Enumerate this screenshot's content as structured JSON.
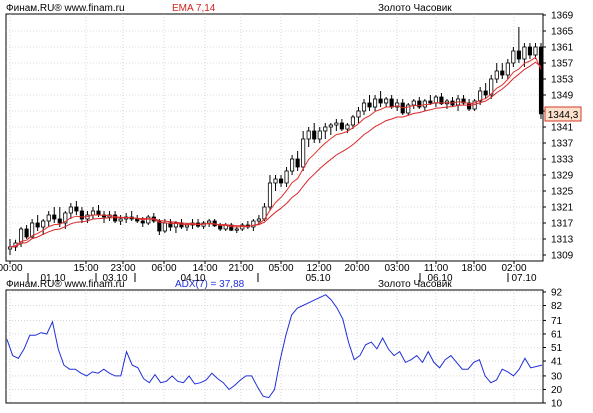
{
  "colors": {
    "background": "#ffffff",
    "grid": "#bdbdbd",
    "frame": "#000000",
    "candle_up": "#ffffff",
    "candle_down": "#000000",
    "ema_fast": "#e0302a",
    "ema_slow": "#d8262a",
    "adx_line": "#2030d8",
    "price_label_bg": "#fbe0cc",
    "price_label_border": "#d23a2a",
    "header_red": "#d0241e"
  },
  "price_panel": {
    "header_left": "Финам.RU® www.finam.ru",
    "header_indicator": "EMA 7,14",
    "header_title": "Золото Часовик",
    "y_ticks": [
      "1369",
      "1365",
      "1361",
      "1357",
      "1353",
      "1349",
      "1345",
      "1341",
      "1337",
      "1333",
      "1329",
      "1325",
      "1321",
      "1317",
      "1313",
      "1309"
    ],
    "last_price_label": "1344,3",
    "time_ticks": [
      "00:00",
      "15:00",
      "23:00",
      "06:00",
      "14:00",
      "21:00",
      "05:00",
      "12:00",
      "20:00",
      "03:00",
      "11:00",
      "18:00",
      "02:00"
    ],
    "date_ticks": [
      "01.10",
      "03.10",
      "04.10",
      "05.10",
      "06.10",
      "07.10"
    ]
  },
  "adx_panel": {
    "header_left": "Финам.RU® www.finam.ru",
    "header_indicator": "ADX(7) = 37,88",
    "header_title": "Золото Часовик",
    "y_ticks": [
      "92",
      "82",
      "71",
      "61",
      "51",
      "41",
      "30",
      "20",
      "10"
    ]
  },
  "chart_data": [
    {
      "type": "candlestick",
      "title": "Золото Часовик",
      "ylim": [
        1309,
        1369
      ],
      "series_name": "EMA 7,14",
      "candles": [
        [
          1310.5,
          1313,
          1309,
          1311
        ],
        [
          1311,
          1312.8,
          1310,
          1312
        ],
        [
          1312,
          1316,
          1311,
          1315.5
        ],
        [
          1315.5,
          1316.5,
          1313,
          1313.5
        ],
        [
          1313.5,
          1318,
          1313,
          1317
        ],
        [
          1317,
          1319,
          1315,
          1316
        ],
        [
          1316,
          1318,
          1314,
          1317.5
        ],
        [
          1317.5,
          1320,
          1316,
          1319
        ],
        [
          1319,
          1321,
          1317,
          1318
        ],
        [
          1318,
          1321,
          1316,
          1317
        ],
        [
          1317,
          1320,
          1315.5,
          1319.5
        ],
        [
          1319.5,
          1322,
          1318,
          1321
        ],
        [
          1321,
          1322.5,
          1319,
          1320
        ],
        [
          1320,
          1321,
          1317,
          1318
        ],
        [
          1318,
          1320,
          1317,
          1319
        ],
        [
          1319,
          1321,
          1318,
          1320
        ],
        [
          1320,
          1321.5,
          1318.5,
          1319
        ],
        [
          1319,
          1320,
          1317,
          1318.5
        ],
        [
          1318.5,
          1320,
          1317.5,
          1319
        ],
        [
          1319,
          1320,
          1317,
          1317.5
        ],
        [
          1317.5,
          1319,
          1316.5,
          1318
        ],
        [
          1318,
          1319.5,
          1317,
          1318.5
        ],
        [
          1318.5,
          1320,
          1317.5,
          1318
        ],
        [
          1318,
          1319,
          1317,
          1317.5
        ],
        [
          1317.5,
          1318.5,
          1316,
          1317
        ],
        [
          1317,
          1319,
          1316.5,
          1318.5
        ],
        [
          1318.5,
          1319.5,
          1317,
          1317.5
        ],
        [
          1317.5,
          1318,
          1314,
          1315
        ],
        [
          1315,
          1318,
          1314.5,
          1317
        ],
        [
          1317,
          1318,
          1315,
          1316
        ],
        [
          1316,
          1317.5,
          1314.5,
          1317
        ],
        [
          1317,
          1318,
          1315.5,
          1316
        ],
        [
          1316,
          1317,
          1315,
          1316.5
        ],
        [
          1316.5,
          1318,
          1315.5,
          1317
        ],
        [
          1317,
          1318,
          1315.8,
          1316.2
        ],
        [
          1316.2,
          1317.5,
          1315.5,
          1317
        ],
        [
          1317,
          1318,
          1316,
          1317.5
        ],
        [
          1317.5,
          1318,
          1316,
          1316.3
        ],
        [
          1316.3,
          1317,
          1315,
          1315.5
        ],
        [
          1315.5,
          1317,
          1315,
          1316.5
        ],
        [
          1316.5,
          1317,
          1315,
          1315.2
        ],
        [
          1315.2,
          1316.2,
          1314.5,
          1315.5
        ],
        [
          1315.5,
          1317,
          1315,
          1316.5
        ],
        [
          1316.5,
          1317.5,
          1315.5,
          1316
        ],
        [
          1316,
          1318,
          1315,
          1317.5
        ],
        [
          1317.5,
          1319,
          1316.5,
          1318
        ],
        [
          1318,
          1322,
          1317.5,
          1321
        ],
        [
          1321,
          1329,
          1320,
          1327
        ],
        [
          1327,
          1329,
          1325,
          1328
        ],
        [
          1328,
          1329,
          1326,
          1327
        ],
        [
          1327,
          1331,
          1326,
          1330
        ],
        [
          1330,
          1334,
          1329,
          1333
        ],
        [
          1333,
          1335,
          1330,
          1331
        ],
        [
          1331,
          1340,
          1330,
          1338
        ],
        [
          1338,
          1341,
          1336,
          1340
        ],
        [
          1340,
          1342,
          1337,
          1338
        ],
        [
          1338,
          1341,
          1337,
          1340
        ],
        [
          1340,
          1342,
          1338,
          1341
        ],
        [
          1341,
          1342,
          1339,
          1341.5
        ],
        [
          1341.5,
          1343,
          1340,
          1342
        ],
        [
          1342,
          1343,
          1340,
          1340.5
        ],
        [
          1340.5,
          1342,
          1339.5,
          1341.5
        ],
        [
          1341.5,
          1344,
          1340.5,
          1343.5
        ],
        [
          1343.5,
          1346,
          1342,
          1345
        ],
        [
          1345,
          1348,
          1344,
          1347
        ],
        [
          1347,
          1349,
          1345,
          1346
        ],
        [
          1346,
          1349,
          1345,
          1348
        ],
        [
          1348,
          1350,
          1346,
          1347
        ],
        [
          1347,
          1348.5,
          1346,
          1348
        ],
        [
          1348,
          1349,
          1345.5,
          1346
        ],
        [
          1346,
          1348,
          1345,
          1347
        ],
        [
          1347,
          1348,
          1344,
          1344.5
        ],
        [
          1344.5,
          1347,
          1344,
          1346.5
        ],
        [
          1346.5,
          1348,
          1345.5,
          1347.5
        ],
        [
          1347.5,
          1348.5,
          1345.5,
          1346
        ],
        [
          1346,
          1348,
          1345,
          1347.5
        ],
        [
          1347.5,
          1349,
          1346.5,
          1347
        ],
        [
          1347,
          1349,
          1346,
          1348.5
        ],
        [
          1348.5,
          1349.5,
          1346.5,
          1346.8
        ],
        [
          1346.8,
          1348,
          1345.5,
          1347.5
        ],
        [
          1347.5,
          1348.5,
          1346,
          1346.5
        ],
        [
          1346.5,
          1349,
          1345,
          1348
        ],
        [
          1348,
          1349,
          1346.5,
          1347
        ],
        [
          1347,
          1348,
          1345,
          1345.5
        ],
        [
          1345.5,
          1348,
          1345,
          1347.5
        ],
        [
          1347.5,
          1351,
          1346.5,
          1350
        ],
        [
          1350,
          1352,
          1348,
          1349
        ],
        [
          1349,
          1354,
          1348,
          1353
        ],
        [
          1353,
          1357,
          1352,
          1355
        ],
        [
          1355,
          1357,
          1353,
          1354
        ],
        [
          1354,
          1358,
          1353,
          1357
        ],
        [
          1357,
          1361,
          1356,
          1360
        ],
        [
          1360,
          1366,
          1357,
          1358
        ],
        [
          1358,
          1362,
          1356,
          1361
        ],
        [
          1361,
          1362,
          1358,
          1359
        ],
        [
          1359,
          1362,
          1358,
          1361
        ],
        [
          1361,
          1362,
          1343,
          1344.3
        ]
      ],
      "ema_fast": [
        1311,
        1311.3,
        1312.4,
        1312.7,
        1313.8,
        1314.4,
        1315.2,
        1316.1,
        1316.6,
        1316.7,
        1317.4,
        1318.3,
        1318.7,
        1318.5,
        1318.6,
        1319,
        1319,
        1318.9,
        1318.9,
        1318.6,
        1318.4,
        1318.4,
        1318.3,
        1318.1,
        1317.8,
        1318,
        1317.9,
        1317.2,
        1317.1,
        1316.8,
        1316.9,
        1316.7,
        1316.6,
        1316.7,
        1316.6,
        1316.7,
        1316.9,
        1316.8,
        1316.4,
        1316.4,
        1316.1,
        1316,
        1316.1,
        1316.1,
        1316.4,
        1316.8,
        1317.9,
        1320.2,
        1322.1,
        1323.4,
        1325.1,
        1327.1,
        1328.1,
        1330.6,
        1332.9,
        1334.2,
        1335.7,
        1337,
        1338.1,
        1339.1,
        1339.4,
        1339.9,
        1340.8,
        1341.8,
        1343.1,
        1343.8,
        1344.9,
        1345.4,
        1346,
        1346,
        1346.3,
        1345.8,
        1346,
        1346.4,
        1346.3,
        1346.6,
        1346.7,
        1347.1,
        1347,
        1347.1,
        1347,
        1347.3,
        1347.2,
        1346.8,
        1347,
        1347.7,
        1348.1,
        1349.3,
        1350.7,
        1351.5,
        1352.9,
        1354.7,
        1355.5,
        1356.9,
        1357.5,
        1358.4,
        1355.4
      ],
      "ema_slow": [
        1311,
        1311.1,
        1311.9,
        1312.1,
        1313.1,
        1313.5,
        1314.2,
        1314.8,
        1315.3,
        1315.5,
        1316.1,
        1316.8,
        1317.2,
        1317.3,
        1317.5,
        1318,
        1318.1,
        1318.2,
        1318.3,
        1318.3,
        1318.3,
        1318.3,
        1318.3,
        1318.2,
        1318.1,
        1318.1,
        1318.1,
        1317.6,
        1317.5,
        1317.3,
        1317.2,
        1317,
        1316.9,
        1316.9,
        1316.7,
        1316.8,
        1316.8,
        1316.7,
        1316.6,
        1316.6,
        1316.4,
        1316.3,
        1316.3,
        1316.2,
        1316.4,
        1316.6,
        1317.2,
        1318.5,
        1319.7,
        1320.7,
        1321.9,
        1323.4,
        1324.4,
        1326.2,
        1327.9,
        1329.2,
        1330.6,
        1331.8,
        1332.9,
        1334,
        1334.8,
        1335.6,
        1336.6,
        1337.8,
        1339.1,
        1340,
        1341.1,
        1341.8,
        1342.6,
        1343,
        1343.5,
        1343.5,
        1343.9,
        1344.4,
        1344.6,
        1345,
        1345.3,
        1345.7,
        1345.8,
        1346,
        1346.1,
        1346.4,
        1346.5,
        1346.4,
        1346.6,
        1347.1,
        1347.5,
        1348.4,
        1349.6,
        1350.5,
        1351.7,
        1353.1,
        1354.2,
        1355.4,
        1356.2,
        1357.2,
        1356.1
      ]
    },
    {
      "type": "line",
      "title": "Золото Часовик",
      "series_name": "ADX(7) = 37,88",
      "ylim": [
        10,
        92
      ],
      "values": [
        57,
        45,
        43,
        50,
        60,
        60,
        62,
        61,
        70,
        50,
        38,
        35,
        35,
        32,
        30,
        33,
        32,
        35,
        32,
        30,
        30,
        48,
        38,
        36,
        28,
        25,
        31,
        25,
        26,
        30,
        26,
        25,
        30,
        24,
        25,
        27,
        32,
        28,
        25,
        20,
        23,
        27,
        30,
        30,
        22,
        15,
        14,
        20,
        42,
        60,
        75,
        80,
        82,
        84,
        86,
        88,
        90,
        86,
        80,
        72,
        55,
        42,
        45,
        53,
        55,
        50,
        58,
        50,
        45,
        48,
        40,
        42,
        45,
        40,
        48,
        40,
        36,
        42,
        45,
        40,
        35,
        35,
        40,
        42,
        30,
        25,
        27,
        35,
        33,
        30,
        35,
        43,
        36,
        37,
        38
      ]
    }
  ]
}
